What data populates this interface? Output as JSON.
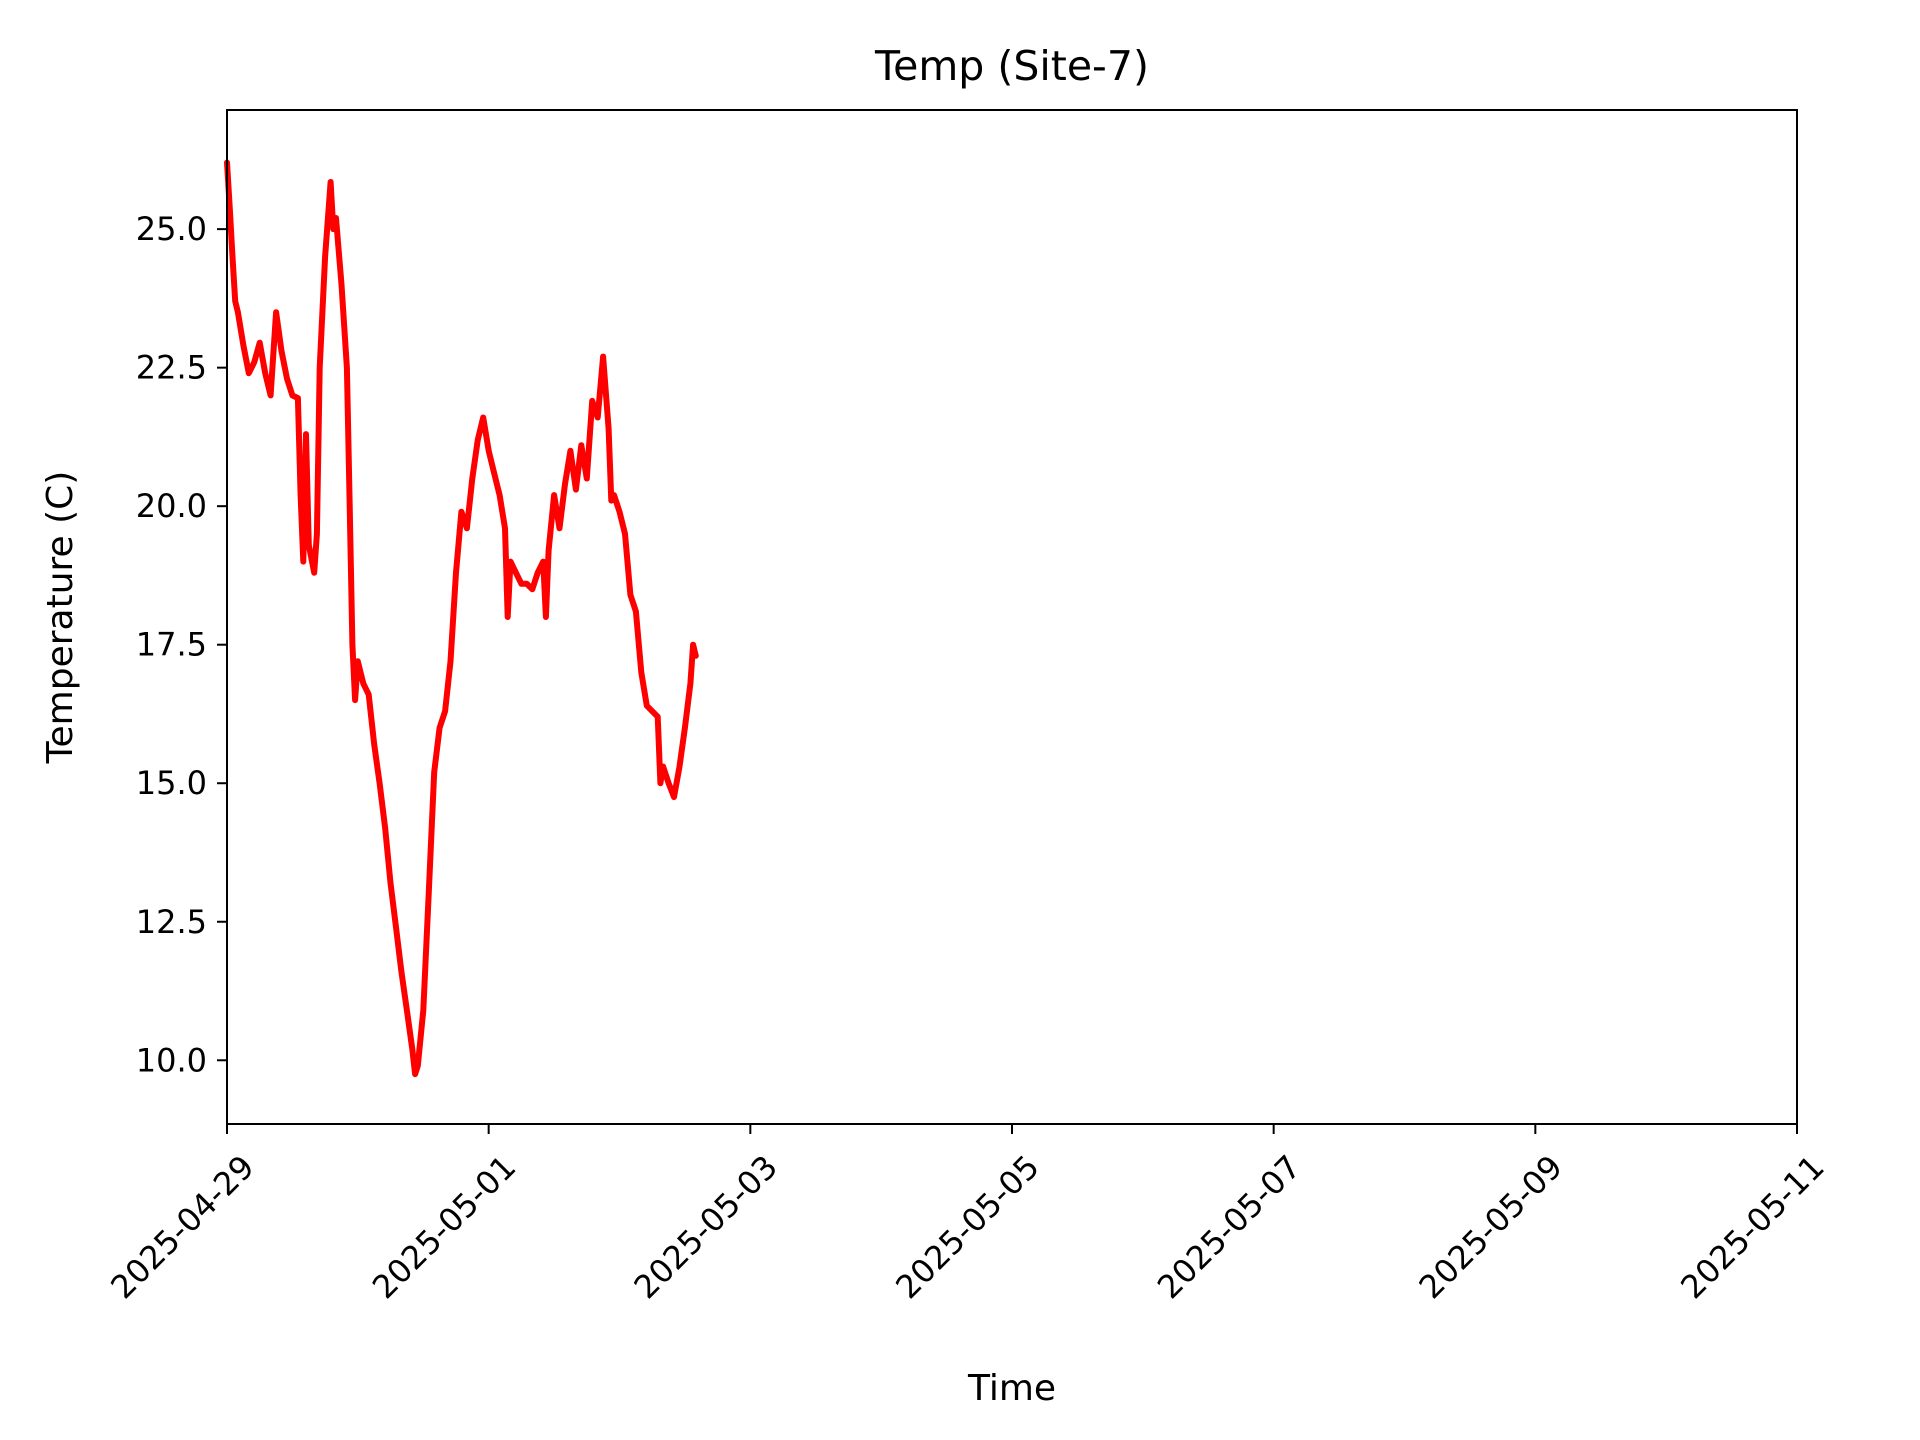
{
  "chart_data": {
    "type": "line",
    "title": "Temp (Site-7)",
    "xlabel": "Time",
    "ylabel": "Temperature (C)",
    "x_axis": {
      "type": "date",
      "range": [
        "2025-04-29",
        "2025-05-11"
      ],
      "ticks": [
        "2025-04-29",
        "2025-05-01",
        "2025-05-03",
        "2025-05-05",
        "2025-05-07",
        "2025-05-09",
        "2025-05-11"
      ],
      "tick_rotation_deg": 45
    },
    "y_axis": {
      "range": [
        8.85,
        27.15
      ],
      "ticks": [
        10.0,
        12.5,
        15.0,
        17.5,
        20.0,
        22.5,
        25.0
      ],
      "tick_labels": [
        "10.0",
        "12.5",
        "15.0",
        "17.5",
        "20.0",
        "22.5",
        "25.0"
      ]
    },
    "grid": false,
    "legend": "none",
    "series": [
      {
        "color": "#ff0000",
        "points": [
          [
            "2025-04-29 00:00",
            26.2
          ],
          [
            "2025-04-29 00:30",
            25.4
          ],
          [
            "2025-04-29 01:00",
            24.5
          ],
          [
            "2025-04-29 01:30",
            23.7
          ],
          [
            "2025-04-29 02:00",
            23.5
          ],
          [
            "2025-04-29 03:00",
            22.9
          ],
          [
            "2025-04-29 04:00",
            22.4
          ],
          [
            "2025-04-29 05:00",
            22.6
          ],
          [
            "2025-04-29 06:00",
            22.95
          ],
          [
            "2025-04-29 07:00",
            22.4
          ],
          [
            "2025-04-29 08:00",
            22.0
          ],
          [
            "2025-04-29 09:00",
            23.5
          ],
          [
            "2025-04-29 10:00",
            22.8
          ],
          [
            "2025-04-29 11:00",
            22.3
          ],
          [
            "2025-04-29 12:00",
            22.0
          ],
          [
            "2025-04-29 13:00",
            21.95
          ],
          [
            "2025-04-29 13:30",
            20.2
          ],
          [
            "2025-04-29 14:00",
            19.0
          ],
          [
            "2025-04-29 14:30",
            21.3
          ],
          [
            "2025-04-29 15:00",
            19.3
          ],
          [
            "2025-04-29 16:00",
            18.8
          ],
          [
            "2025-04-29 16:30",
            19.5
          ],
          [
            "2025-04-29 17:00",
            22.5
          ],
          [
            "2025-04-29 18:00",
            24.5
          ],
          [
            "2025-04-29 19:00",
            25.85
          ],
          [
            "2025-04-29 19:30",
            25.0
          ],
          [
            "2025-04-29 20:00",
            25.2
          ],
          [
            "2025-04-29 21:00",
            24.0
          ],
          [
            "2025-04-29 22:00",
            22.5
          ],
          [
            "2025-04-29 22:30",
            20.0
          ],
          [
            "2025-04-29 23:00",
            17.5
          ],
          [
            "2025-04-29 23:30",
            16.5
          ],
          [
            "2025-04-30 00:00",
            17.2
          ],
          [
            "2025-04-30 01:00",
            16.8
          ],
          [
            "2025-04-30 02:00",
            16.6
          ],
          [
            "2025-04-30 03:00",
            15.7
          ],
          [
            "2025-04-30 04:00",
            15.0
          ],
          [
            "2025-04-30 05:00",
            14.2
          ],
          [
            "2025-04-30 06:00",
            13.2
          ],
          [
            "2025-04-30 07:00",
            12.4
          ],
          [
            "2025-04-30 08:00",
            11.6
          ],
          [
            "2025-04-30 09:00",
            10.9
          ],
          [
            "2025-04-30 10:00",
            10.2
          ],
          [
            "2025-04-30 10:30",
            9.75
          ],
          [
            "2025-04-30 11:00",
            9.9
          ],
          [
            "2025-04-30 12:00",
            10.9
          ],
          [
            "2025-04-30 13:00",
            13.0
          ],
          [
            "2025-04-30 14:00",
            15.2
          ],
          [
            "2025-04-30 15:00",
            16.0
          ],
          [
            "2025-04-30 16:00",
            16.3
          ],
          [
            "2025-04-30 17:00",
            17.2
          ],
          [
            "2025-04-30 18:00",
            18.8
          ],
          [
            "2025-04-30 19:00",
            19.9
          ],
          [
            "2025-04-30 20:00",
            19.6
          ],
          [
            "2025-04-30 21:00",
            20.5
          ],
          [
            "2025-04-30 22:00",
            21.2
          ],
          [
            "2025-04-30 23:00",
            21.6
          ],
          [
            "2025-05-01 00:00",
            21.0
          ],
          [
            "2025-05-01 01:00",
            20.6
          ],
          [
            "2025-05-01 02:00",
            20.2
          ],
          [
            "2025-05-01 03:00",
            19.6
          ],
          [
            "2025-05-01 03:30",
            18.0
          ],
          [
            "2025-05-01 04:00",
            19.0
          ],
          [
            "2025-05-01 05:00",
            18.8
          ],
          [
            "2025-05-01 06:00",
            18.6
          ],
          [
            "2025-05-01 07:00",
            18.6
          ],
          [
            "2025-05-01 08:00",
            18.5
          ],
          [
            "2025-05-01 09:00",
            18.8
          ],
          [
            "2025-05-01 10:00",
            19.0
          ],
          [
            "2025-05-01 10:30",
            18.0
          ],
          [
            "2025-05-01 11:00",
            19.2
          ],
          [
            "2025-05-01 12:00",
            20.2
          ],
          [
            "2025-05-01 13:00",
            19.6
          ],
          [
            "2025-05-01 14:00",
            20.4
          ],
          [
            "2025-05-01 15:00",
            21.0
          ],
          [
            "2025-05-01 16:00",
            20.3
          ],
          [
            "2025-05-01 17:00",
            21.1
          ],
          [
            "2025-05-01 18:00",
            20.5
          ],
          [
            "2025-05-01 19:00",
            21.9
          ],
          [
            "2025-05-01 20:00",
            21.6
          ],
          [
            "2025-05-01 21:00",
            22.7
          ],
          [
            "2025-05-01 22:00",
            21.4
          ],
          [
            "2025-05-01 22:30",
            20.1
          ],
          [
            "2025-05-01 23:00",
            20.2
          ],
          [
            "2025-05-02 00:00",
            19.9
          ],
          [
            "2025-05-02 01:00",
            19.5
          ],
          [
            "2025-05-02 02:00",
            18.4
          ],
          [
            "2025-05-02 03:00",
            18.1
          ],
          [
            "2025-05-02 04:00",
            17.0
          ],
          [
            "2025-05-02 05:00",
            16.4
          ],
          [
            "2025-05-02 06:00",
            16.3
          ],
          [
            "2025-05-02 07:00",
            16.2
          ],
          [
            "2025-05-02 07:30",
            15.0
          ],
          [
            "2025-05-02 08:00",
            15.3
          ],
          [
            "2025-05-02 09:00",
            15.0
          ],
          [
            "2025-05-02 10:00",
            14.75
          ],
          [
            "2025-05-02 11:00",
            15.3
          ],
          [
            "2025-05-02 12:00",
            16.0
          ],
          [
            "2025-05-02 13:00",
            16.8
          ],
          [
            "2025-05-02 13:30",
            17.5
          ],
          [
            "2025-05-02 14:00",
            17.3
          ]
        ]
      }
    ]
  }
}
